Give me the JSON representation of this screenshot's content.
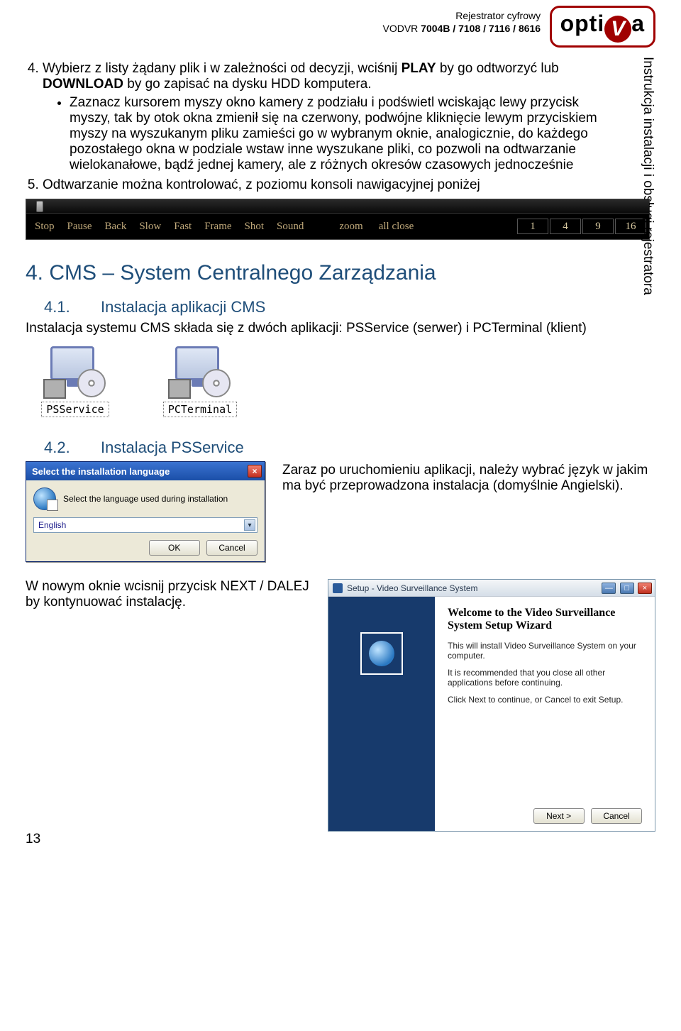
{
  "header": {
    "line1": "Rejestrator cyfrowy",
    "line2_prefix": "VODVR ",
    "line2_bold": "7004B / 7108 / 7116 / 8616",
    "logo_a": "opti",
    "logo_v": "V",
    "logo_b": "a"
  },
  "sidetext": "Instrukcja instalacji i obsługi rejestratora",
  "list": {
    "item4_a": "Wybierz z listy żądany plik i w zależności od decyzji, wciśnij ",
    "item4_play": "PLAY",
    "item4_b": " by go odtworzyć lub ",
    "item4_dl": "DOWNLOAD",
    "item4_c": " by go zapisać na dysku HDD komputera.",
    "bullet1": "Zaznacz kursorem myszy okno kamery z podziału i podświetl wciskając lewy przycisk myszy, tak by otok okna zmienił się na czerwony, podwójne kliknięcie lewym przyciskiem myszy na wyszukanym pliku zamieści go w wybranym oknie, analogicznie, do każdego pozostałego okna w podziale wstaw inne wyszukane pliki, co pozwoli na odtwarzanie wielokanałowe, bądź jednej kamery, ale z różnych okresów czasowych jednocześnie",
    "item5": "Odtwarzanie można kontrolować, z poziomu konsoli nawigacyjnej poniżej"
  },
  "playback": {
    "buttons": [
      "Stop",
      "Pause",
      "Back",
      "Slow",
      "Fast",
      "Frame",
      "Shot",
      "Sound"
    ],
    "zoom": "zoom",
    "allclose": "all close",
    "nums": [
      "1",
      "4",
      "9",
      "16"
    ]
  },
  "sec4": {
    "title": "4. CMS – System Centralnego Zarządzania"
  },
  "sec41": {
    "num": "4.1.",
    "title": "Instalacja aplikacji CMS",
    "para": "Instalacja systemu CMS składa się z dwóch aplikacji: PSService (serwer) i PCTerminal (klient)",
    "icon1": "PSService",
    "icon2": "PCTerminal"
  },
  "sec42": {
    "num": "4.2.",
    "title": "Instalacja PSService",
    "para": "Zaraz po uruchomieniu aplikacji, należy wybrać język w jakim ma być przeprowadzona instalacja (domyślnie Angielski).",
    "dialog": {
      "title": "Select the installation language",
      "prompt": "Select the language used during installation",
      "value": "English",
      "ok": "OK",
      "cancel": "Cancel"
    }
  },
  "setupRow": {
    "left": "W nowym oknie wcisnij przycisk NEXT / DALEJ by kontynuować instalację.",
    "win": {
      "title": "Setup - Video Surveillance System",
      "h": "Welcome to the Video Surveillance System Setup Wizard",
      "p1": "This will install Video Surveillance System on your computer.",
      "p2": "It is recommended that you close all other applications before continuing.",
      "p3": "Click Next to continue, or Cancel to exit Setup.",
      "next": "Next >",
      "cancel": "Cancel"
    }
  },
  "pageNumber": "13"
}
